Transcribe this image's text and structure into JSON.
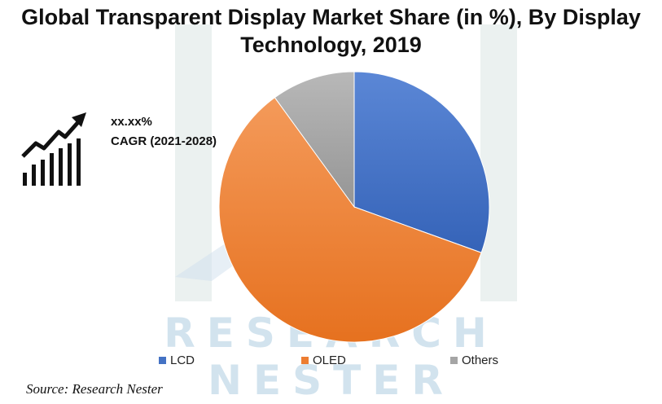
{
  "title_line1": "Global Transparent Display Market Share (in %), By Display",
  "title_line2": "Technology, 2019",
  "cagr": {
    "value": "xx.xx%",
    "label": "CAGR (2021-2028)",
    "icon": "growth-chart-icon"
  },
  "watermark": {
    "line1": "RESEARCH",
    "line2": "NESTER"
  },
  "source": "Source: Research Nester",
  "colors": {
    "LCD": "#4472c4",
    "OLED": "#ed7d31",
    "Others": "#a5a5a5",
    "watermark": "#d2e3ee"
  },
  "chart_data": {
    "type": "pie",
    "title": "Global Transparent Display Market Share (in %), By Display Technology, 2019",
    "categories": [
      "LCD",
      "OLED",
      "Others"
    ],
    "values": [
      30.5,
      59.5,
      10.0
    ],
    "start_angle_deg": 0,
    "direction": "clockwise",
    "legend_position": "bottom"
  }
}
